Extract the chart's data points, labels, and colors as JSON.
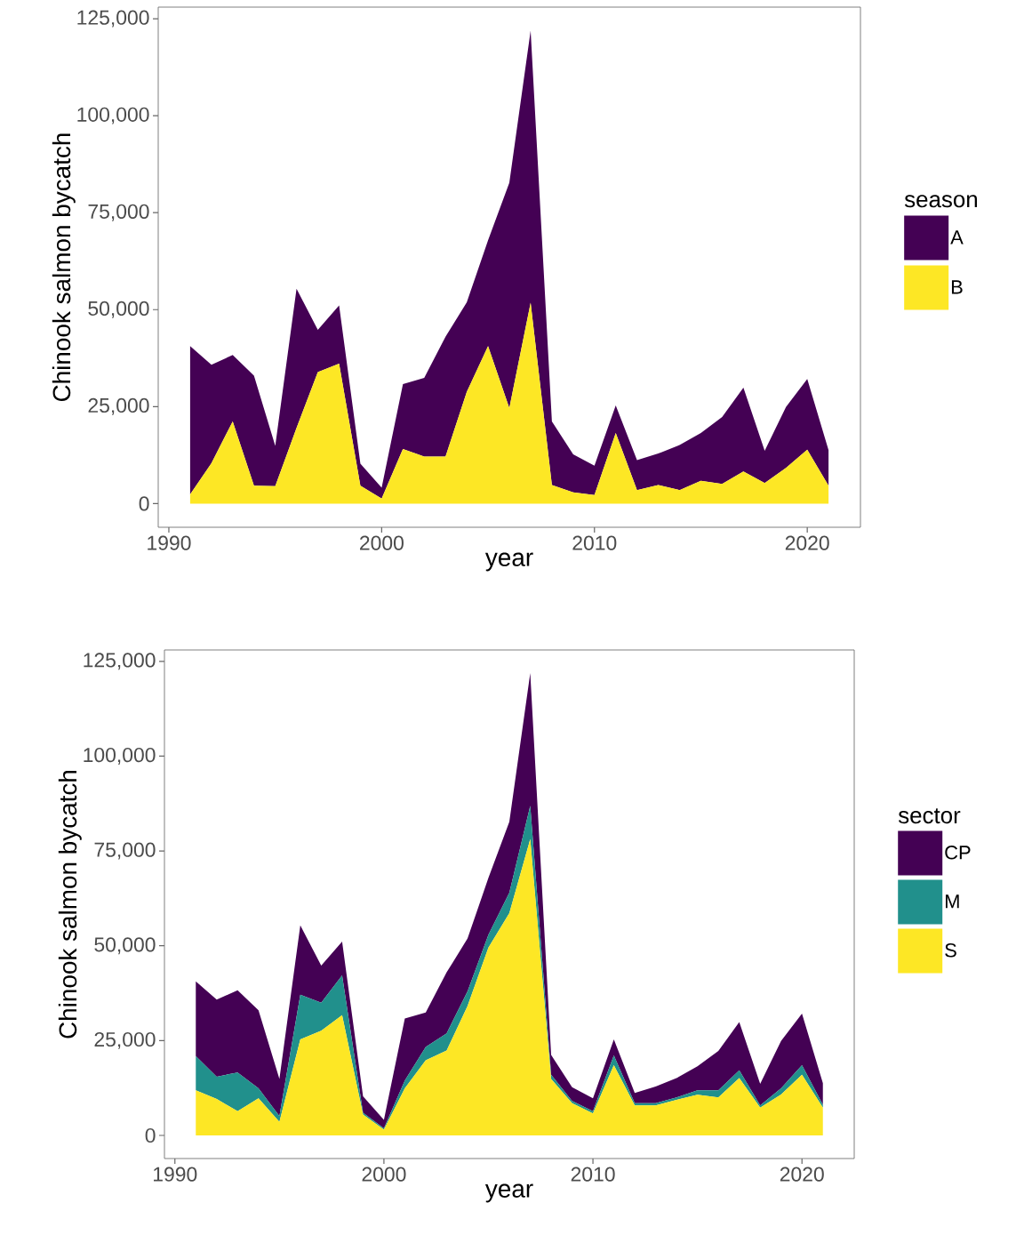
{
  "chart_data": [
    {
      "type": "area",
      "stacked": true,
      "xlabel": "year",
      "ylabel": "Chinook salmon bycatch",
      "legend_title": "season",
      "legend": "right",
      "x": [
        1991,
        1992,
        1993,
        1994,
        1995,
        1996,
        1997,
        1998,
        1999,
        2000,
        2001,
        2002,
        2003,
        2004,
        2005,
        2006,
        2007,
        2008,
        2009,
        2010,
        2011,
        2012,
        2013,
        2014,
        2015,
        2016,
        2017,
        2018,
        2019,
        2020,
        2021
      ],
      "xlim": [
        1989.5,
        2022.5
      ],
      "xticks": [
        1990,
        2000,
        2010,
        2020
      ],
      "ylim": [
        -6100,
        128000
      ],
      "yticks": [
        {
          "value": 0,
          "label": "0"
        },
        {
          "value": 25000,
          "label": "25,000"
        },
        {
          "value": 50000,
          "label": "50,000"
        },
        {
          "value": 75000,
          "label": "75,000"
        },
        {
          "value": 100000,
          "label": "100,000"
        },
        {
          "value": 125000,
          "label": "125,000"
        }
      ],
      "series": [
        {
          "name": "B",
          "color": "#fde725",
          "values": [
            2400,
            10400,
            21200,
            4600,
            4500,
            19500,
            33900,
            36100,
            4600,
            1300,
            14100,
            12100,
            12100,
            28800,
            40600,
            24600,
            51800,
            4800,
            2900,
            2200,
            18200,
            3500,
            4800,
            3500,
            5900,
            5100,
            8300,
            5300,
            9200,
            13900,
            4600
          ]
        },
        {
          "name": "A",
          "color": "#440154",
          "values": [
            38200,
            25400,
            17100,
            28400,
            10400,
            35900,
            10900,
            15000,
            5700,
            2800,
            16700,
            20300,
            30900,
            23100,
            27300,
            58100,
            70100,
            16400,
            9800,
            7600,
            7100,
            7700,
            8100,
            11600,
            12300,
            17200,
            21600,
            8300,
            15700,
            18200,
            9200
          ]
        }
      ]
    },
    {
      "type": "area",
      "stacked": true,
      "xlabel": "year",
      "ylabel": "Chinook salmon bycatch",
      "legend_title": "sector",
      "legend": "right",
      "x": [
        1991,
        1992,
        1993,
        1994,
        1995,
        1996,
        1997,
        1998,
        1999,
        2000,
        2001,
        2002,
        2003,
        2004,
        2005,
        2006,
        2007,
        2008,
        2009,
        2010,
        2011,
        2012,
        2013,
        2014,
        2015,
        2016,
        2017,
        2018,
        2019,
        2020,
        2021
      ],
      "xlim": [
        1989.5,
        2022.5
      ],
      "xticks": [
        1990,
        2000,
        2010,
        2020
      ],
      "ylim": [
        -6100,
        128000
      ],
      "yticks": [
        {
          "value": 0,
          "label": "0"
        },
        {
          "value": 25000,
          "label": "25,000"
        },
        {
          "value": 50000,
          "label": "50,000"
        },
        {
          "value": 75000,
          "label": "75,000"
        },
        {
          "value": 100000,
          "label": "100,000"
        },
        {
          "value": 125000,
          "label": "125,000"
        }
      ],
      "series": [
        {
          "name": "S",
          "color": "#fde725",
          "values": [
            11900,
            9600,
            6400,
            9800,
            3600,
            25300,
            27600,
            31700,
            5500,
            1500,
            12400,
            19800,
            22400,
            34100,
            49500,
            58600,
            78100,
            14900,
            8500,
            5800,
            18500,
            7900,
            7900,
            9400,
            10700,
            10000,
            15100,
            7300,
            10800,
            16000,
            7300
          ]
        },
        {
          "name": "M",
          "color": "#21908c",
          "values": [
            9000,
            5900,
            10200,
            2600,
            1500,
            11800,
            7400,
            10500,
            500,
            400,
            2100,
            3500,
            4500,
            3900,
            3400,
            5400,
            8800,
            1100,
            600,
            600,
            2600,
            600,
            600,
            600,
            1200,
            1900,
            2100,
            600,
            1600,
            2500,
            800
          ]
        },
        {
          "name": "CP",
          "color": "#440154",
          "values": [
            19700,
            20300,
            21700,
            20600,
            9800,
            18300,
            9800,
            8900,
            4300,
            2200,
            16300,
            9100,
            16100,
            13900,
            15000,
            18700,
            35000,
            5200,
            3600,
            3400,
            4200,
            2700,
            4400,
            5100,
            6300,
            10400,
            12700,
            5700,
            12500,
            13600,
            5700
          ]
        }
      ]
    }
  ]
}
